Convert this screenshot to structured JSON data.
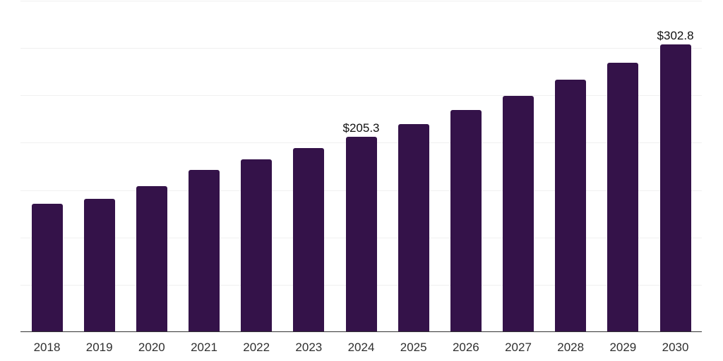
{
  "chart_data": {
    "type": "bar",
    "title": "",
    "xlabel": "",
    "ylabel": "",
    "categories": [
      "2018",
      "2019",
      "2020",
      "2021",
      "2022",
      "2023",
      "2024",
      "2025",
      "2026",
      "2027",
      "2028",
      "2029",
      "2030"
    ],
    "values": [
      134.8,
      140.2,
      153.4,
      170.4,
      182.0,
      193.7,
      205.3,
      218.6,
      233.8,
      249.1,
      265.6,
      284.0,
      302.8
    ],
    "data_labels": {
      "2024": "$205.3",
      "2030": "$302.8"
    },
    "ylim": [
      0,
      350
    ],
    "gridline_step": 50,
    "grid": true,
    "legend": "none",
    "colors": {
      "bar": "#341249",
      "gridline": "#f0f0f0",
      "axis": "#333333",
      "tick_label": "#2f2f2f",
      "data_label": "#101010",
      "background": "#ffffff"
    }
  }
}
